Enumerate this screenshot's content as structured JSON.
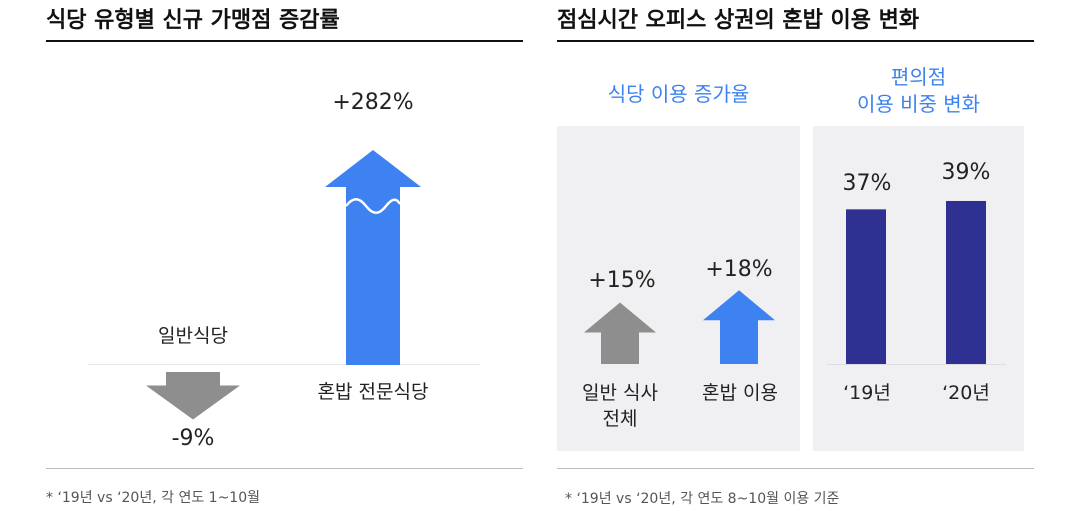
{
  "left": {
    "title": "식당 유형별 신규 가맹점 증감률",
    "footnote": "* ‘19년 vs ‘20년, 각 연도 1~10월"
  },
  "right": {
    "title": "점심시간 오피스 상권의  혼밥 이용 변화",
    "footnote": "* ‘19년 vs ‘20년, 각 연도 8~10월 이용 기준",
    "sub_left_title": "식당 이용 증가율",
    "sub_right_title_line1": "편의점",
    "sub_right_title_line2": "이용 비중 변화"
  },
  "colors": {
    "blue_arrow": "#3d82f0",
    "gray_arrow": "#8e8e8e",
    "navy_bar": "#2e3192",
    "subtitle_blue": "#3d82f0"
  },
  "chart_data": [
    {
      "type": "bar",
      "title": "식당 유형별 신규 가맹점 증감률",
      "categories": [
        "일반식당",
        "혼밥 전문식당"
      ],
      "values": [
        -9,
        282
      ],
      "value_labels": [
        "-9%",
        "+282%"
      ],
      "unit": "%",
      "axis_break": true,
      "marks": [
        "down-arrow",
        "up-arrow"
      ],
      "mark_colors": [
        "#8e8e8e",
        "#3d82f0"
      ]
    },
    {
      "type": "bar",
      "title": "식당 이용 증가율",
      "categories": [
        "일반 식사 전체",
        "혼밥 이용"
      ],
      "category_lines": [
        [
          "일반 식사",
          "전체"
        ],
        [
          "혼밥 이용"
        ]
      ],
      "values": [
        15,
        18
      ],
      "value_labels": [
        "+15%",
        "+18%"
      ],
      "unit": "%",
      "marks": [
        "up-arrow",
        "up-arrow"
      ],
      "mark_colors": [
        "#8e8e8e",
        "#3d82f0"
      ]
    },
    {
      "type": "bar",
      "title": "편의점 이용 비중 변화",
      "categories": [
        "‘19년",
        "‘20년"
      ],
      "values": [
        37,
        39
      ],
      "value_labels": [
        "37%",
        "39%"
      ],
      "unit": "%",
      "mark_colors": [
        "#2e3192",
        "#2e3192"
      ]
    }
  ]
}
